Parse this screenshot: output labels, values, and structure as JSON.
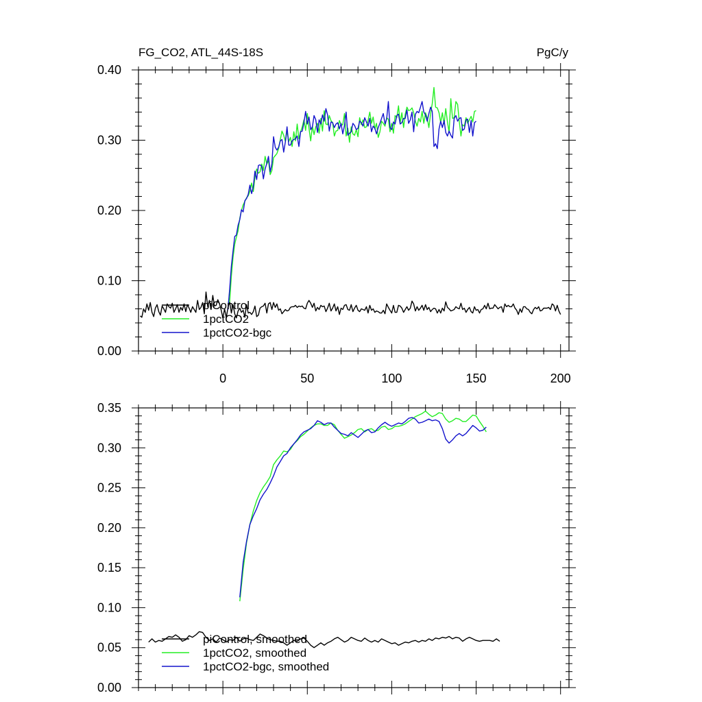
{
  "figure": {
    "title_left": "FG_CO2, ATL_44S-18S",
    "title_right": "PgC/y"
  },
  "chart_data": [
    {
      "type": "line",
      "panel": "top",
      "xlim": [
        -50,
        205
      ],
      "ylim": [
        0.0,
        0.4
      ],
      "x_ticks": [
        0,
        50,
        100,
        150,
        200
      ],
      "x_tick_labels": [
        "0",
        "50",
        "100",
        "150",
        "200"
      ],
      "y_ticks": [
        0.0,
        0.1,
        0.2,
        0.3,
        0.4
      ],
      "y_tick_labels": [
        "0.00",
        "0.10",
        "0.20",
        "0.30",
        "0.40"
      ],
      "grid": false,
      "legend_position": "lower-left",
      "series": [
        {
          "name": "piControl",
          "color": "#000000",
          "x_start": -49,
          "x_step": 1,
          "values": [
            0.05,
            0.048,
            0.06,
            0.055,
            0.067,
            0.058,
            0.069,
            0.055,
            0.049,
            0.061,
            0.066,
            0.056,
            0.051,
            0.064,
            0.06,
            0.055,
            0.067,
            0.063,
            0.061,
            0.068,
            0.055,
            0.06,
            0.066,
            0.055,
            0.062,
            0.058,
            0.067,
            0.056,
            0.066,
            0.061,
            0.055,
            0.063,
            0.059,
            0.055,
            0.072,
            0.059,
            0.062,
            0.069,
            0.053,
            0.084,
            0.063,
            0.072,
            0.059,
            0.079,
            0.064,
            0.065,
            0.073,
            0.067,
            0.058,
            0.047,
            0.06,
            0.047,
            0.062,
            0.07,
            0.054,
            0.066,
            0.053,
            0.047,
            0.057,
            0.061,
            0.055,
            0.058,
            0.048,
            0.066,
            0.054,
            0.055,
            0.052,
            0.056,
            0.064,
            0.049,
            0.051,
            0.061,
            0.063,
            0.064,
            0.068,
            0.054,
            0.067,
            0.069,
            0.059,
            0.069,
            0.062,
            0.067,
            0.058,
            0.06,
            0.053,
            0.056,
            0.059,
            0.057,
            0.058,
            0.062,
            0.063,
            0.063,
            0.065,
            0.062,
            0.064,
            0.063,
            0.064,
            0.061,
            0.06,
            0.068,
            0.072,
            0.068,
            0.062,
            0.068,
            0.057,
            0.062,
            0.059,
            0.065,
            0.063,
            0.064,
            0.056,
            0.061,
            0.068,
            0.057,
            0.061,
            0.067,
            0.057,
            0.063,
            0.052,
            0.061,
            0.059,
            0.065,
            0.066,
            0.059,
            0.058,
            0.066,
            0.056,
            0.061,
            0.065,
            0.058,
            0.056,
            0.06,
            0.059,
            0.058,
            0.063,
            0.054,
            0.065,
            0.058,
            0.06,
            0.055,
            0.057,
            0.056,
            0.054,
            0.054,
            0.058,
            0.053,
            0.067,
            0.062,
            0.058,
            0.054,
            0.065,
            0.055,
            0.055,
            0.065,
            0.064,
            0.061,
            0.055,
            0.059,
            0.063,
            0.058,
            0.061,
            0.071,
            0.067,
            0.057,
            0.063,
            0.058,
            0.061,
            0.065,
            0.058,
            0.066,
            0.059,
            0.062,
            0.056,
            0.059,
            0.061,
            0.06,
            0.054,
            0.059,
            0.054,
            0.061,
            0.057,
            0.07,
            0.062,
            0.06,
            0.057,
            0.058,
            0.059,
            0.063,
            0.061,
            0.06,
            0.068,
            0.059,
            0.061,
            0.055,
            0.059,
            0.062,
            0.056,
            0.054,
            0.063,
            0.058,
            0.059,
            0.054,
            0.059,
            0.06,
            0.065,
            0.06,
            0.068,
            0.06,
            0.061,
            0.061,
            0.066,
            0.063,
            0.06,
            0.062,
            0.063,
            0.055,
            0.067,
            0.063,
            0.065,
            0.063,
            0.063,
            0.067,
            0.061,
            0.058,
            0.052,
            0.06,
            0.055,
            0.063,
            0.063,
            0.06,
            0.059,
            0.055,
            0.053,
            0.059,
            0.062,
            0.06,
            0.063,
            0.057,
            0.058,
            0.061,
            0.061,
            0.061,
            0.062,
            0.059,
            0.067,
            0.065,
            0.057,
            0.065,
            0.057,
            0.052
          ]
        },
        {
          "name": "1pctCO2",
          "color": "#22ee22",
          "x_start": 3,
          "x_step": 1,
          "values": [
            0.069,
            0.07,
            0.107,
            0.133,
            0.152,
            0.162,
            0.171,
            0.189,
            0.2,
            0.208,
            0.213,
            0.218,
            0.221,
            0.227,
            0.239,
            0.227,
            0.247,
            0.259,
            0.253,
            0.255,
            0.266,
            0.257,
            0.277,
            0.266,
            0.271,
            0.251,
            0.257,
            0.275,
            0.278,
            0.281,
            0.288,
            0.301,
            0.313,
            0.307,
            0.298,
            0.313,
            0.298,
            0.304,
            0.291,
            0.312,
            0.299,
            0.323,
            0.302,
            0.312,
            0.319,
            0.329,
            0.314,
            0.338,
            0.317,
            0.299,
            0.32,
            0.308,
            0.319,
            0.324,
            0.31,
            0.331,
            0.313,
            0.342,
            0.323,
            0.322,
            0.335,
            0.328,
            0.325,
            0.306,
            0.313,
            0.314,
            0.328,
            0.322,
            0.322,
            0.338,
            0.306,
            0.317,
            0.297,
            0.319,
            0.309,
            0.307,
            0.315,
            0.305,
            0.332,
            0.322,
            0.329,
            0.318,
            0.319,
            0.328,
            0.34,
            0.324,
            0.333,
            0.316,
            0.324,
            0.304,
            0.312,
            0.327,
            0.324,
            0.32,
            0.332,
            0.33,
            0.312,
            0.324,
            0.31,
            0.335,
            0.332,
            0.349,
            0.324,
            0.339,
            0.318,
            0.337,
            0.347,
            0.342,
            0.343,
            0.346,
            0.339,
            0.327,
            0.32,
            0.331,
            0.326,
            0.341,
            0.324,
            0.339,
            0.332,
            0.318,
            0.338,
            0.352,
            0.375,
            0.347,
            0.346,
            0.339,
            0.325,
            0.339,
            0.323,
            0.345,
            0.326,
            0.311,
            0.359,
            0.331,
            0.332,
            0.355,
            0.351,
            0.327,
            0.306,
            0.322,
            0.32,
            0.332,
            0.324,
            0.329,
            0.334,
            0.326,
            0.341,
            0.342
          ]
        },
        {
          "name": "1pctCO2-bgc",
          "color": "#1212cc",
          "x_start": 3,
          "x_step": 1,
          "values": [
            0.059,
            0.088,
            0.121,
            0.142,
            0.163,
            0.165,
            0.179,
            0.187,
            0.201,
            0.198,
            0.214,
            0.217,
            0.223,
            0.236,
            0.224,
            0.234,
            0.256,
            0.244,
            0.264,
            0.265,
            0.263,
            0.245,
            0.259,
            0.267,
            0.277,
            0.255,
            0.266,
            0.305,
            0.29,
            0.286,
            0.29,
            0.299,
            0.301,
            0.283,
            0.298,
            0.319,
            0.293,
            0.293,
            0.299,
            0.301,
            0.302,
            0.306,
            0.291,
            0.312,
            0.313,
            0.325,
            0.341,
            0.323,
            0.333,
            0.315,
            0.319,
            0.335,
            0.329,
            0.311,
            0.329,
            0.323,
            0.336,
            0.327,
            0.345,
            0.336,
            0.313,
            0.326,
            0.325,
            0.318,
            0.323,
            0.325,
            0.316,
            0.324,
            0.309,
            0.321,
            0.34,
            0.307,
            0.31,
            0.312,
            0.324,
            0.321,
            0.315,
            0.317,
            0.327,
            0.325,
            0.32,
            0.332,
            0.326,
            0.32,
            0.331,
            0.312,
            0.32,
            0.317,
            0.309,
            0.318,
            0.324,
            0.331,
            0.338,
            0.323,
            0.33,
            0.355,
            0.318,
            0.315,
            0.326,
            0.323,
            0.335,
            0.337,
            0.323,
            0.325,
            0.331,
            0.331,
            0.343,
            0.324,
            0.329,
            0.34,
            0.312,
            0.337,
            0.341,
            0.339,
            0.347,
            0.355,
            0.34,
            0.336,
            0.327,
            0.338,
            0.347,
            0.341,
            0.291,
            0.295,
            0.288,
            0.316,
            0.327,
            0.318,
            0.328,
            0.311,
            0.306,
            0.313,
            0.307,
            0.303,
            0.331,
            0.335,
            0.327,
            0.331,
            0.332,
            0.314,
            0.316,
            0.329,
            0.33,
            0.311,
            0.328,
            0.306,
            0.325,
            0.327
          ]
        }
      ]
    },
    {
      "type": "line",
      "panel": "bottom",
      "xlim": [
        -50,
        205
      ],
      "ylim": [
        0.0,
        0.35
      ],
      "x_ticks": [
        0,
        50,
        100,
        150,
        200
      ],
      "y_ticks": [
        0.0,
        0.05,
        0.1,
        0.15,
        0.2,
        0.25,
        0.3,
        0.35
      ],
      "y_tick_labels": [
        "0.00",
        "0.05",
        "0.10",
        "0.15",
        "0.20",
        "0.25",
        "0.30",
        "0.35"
      ],
      "grid": false,
      "legend_position": "lower-left",
      "series": [
        {
          "name": "piControl, smoothed",
          "color": "#000000",
          "x_start": -44,
          "x_step": 2,
          "values": [
            0.057,
            0.061,
            0.057,
            0.059,
            0.058,
            0.061,
            0.064,
            0.063,
            0.066,
            0.063,
            0.058,
            0.06,
            0.065,
            0.063,
            0.066,
            0.07,
            0.069,
            0.063,
            0.059,
            0.061,
            0.057,
            0.062,
            0.06,
            0.057,
            0.06,
            0.059,
            0.063,
            0.058,
            0.061,
            0.062,
            0.06,
            0.059,
            0.063,
            0.067,
            0.065,
            0.062,
            0.06,
            0.059,
            0.058,
            0.058,
            0.056,
            0.053,
            0.056,
            0.059,
            0.058,
            0.061,
            0.062,
            0.058,
            0.053,
            0.05,
            0.053,
            0.056,
            0.053,
            0.056,
            0.058,
            0.061,
            0.063,
            0.06,
            0.057,
            0.059,
            0.063,
            0.061,
            0.059,
            0.058,
            0.062,
            0.059,
            0.057,
            0.059,
            0.057,
            0.061,
            0.059,
            0.057,
            0.055,
            0.056,
            0.053,
            0.055,
            0.057,
            0.056,
            0.058,
            0.059,
            0.057,
            0.059,
            0.058,
            0.061,
            0.059,
            0.062,
            0.061,
            0.063,
            0.062,
            0.064,
            0.061,
            0.063,
            0.062,
            0.058,
            0.061,
            0.063,
            0.061,
            0.059,
            0.058,
            0.059,
            0.059,
            0.059,
            0.058,
            0.061,
            0.058
          ]
        },
        {
          "name": "1pctCO2, smoothed",
          "color": "#22ee22",
          "x_start": 10,
          "x_step": 2,
          "values": [
            0.108,
            0.148,
            0.181,
            0.204,
            0.221,
            0.234,
            0.244,
            0.251,
            0.257,
            0.264,
            0.279,
            0.285,
            0.29,
            0.296,
            0.295,
            0.298,
            0.305,
            0.309,
            0.314,
            0.317,
            0.321,
            0.325,
            0.328,
            0.33,
            0.33,
            0.328,
            0.328,
            0.331,
            0.329,
            0.322,
            0.317,
            0.312,
            0.314,
            0.316,
            0.319,
            0.323,
            0.324,
            0.32,
            0.323,
            0.324,
            0.321,
            0.322,
            0.326,
            0.327,
            0.323,
            0.324,
            0.327,
            0.327,
            0.328,
            0.33,
            0.333,
            0.336,
            0.339,
            0.341,
            0.343,
            0.346,
            0.342,
            0.339,
            0.341,
            0.344,
            0.343,
            0.336,
            0.332,
            0.334,
            0.337,
            0.336,
            0.333,
            0.333,
            0.337,
            0.341,
            0.34,
            0.333,
            0.327,
            0.32
          ]
        },
        {
          "name": "1pctCO2-bgc, smoothed",
          "color": "#1212cc",
          "x_start": 10,
          "x_step": 2,
          "values": [
            0.113,
            0.157,
            0.183,
            0.204,
            0.215,
            0.224,
            0.235,
            0.242,
            0.248,
            0.256,
            0.265,
            0.276,
            0.283,
            0.29,
            0.293,
            0.3,
            0.305,
            0.31,
            0.316,
            0.32,
            0.322,
            0.324,
            0.328,
            0.334,
            0.332,
            0.329,
            0.331,
            0.331,
            0.326,
            0.322,
            0.318,
            0.317,
            0.315,
            0.319,
            0.316,
            0.313,
            0.317,
            0.321,
            0.323,
            0.319,
            0.32,
            0.325,
            0.329,
            0.332,
            0.329,
            0.327,
            0.329,
            0.331,
            0.33,
            0.333,
            0.337,
            0.338,
            0.336,
            0.331,
            0.332,
            0.334,
            0.336,
            0.334,
            0.335,
            0.333,
            0.324,
            0.311,
            0.306,
            0.31,
            0.315,
            0.318,
            0.315,
            0.318,
            0.323,
            0.328,
            0.325,
            0.321,
            0.322,
            0.326
          ]
        }
      ]
    }
  ]
}
